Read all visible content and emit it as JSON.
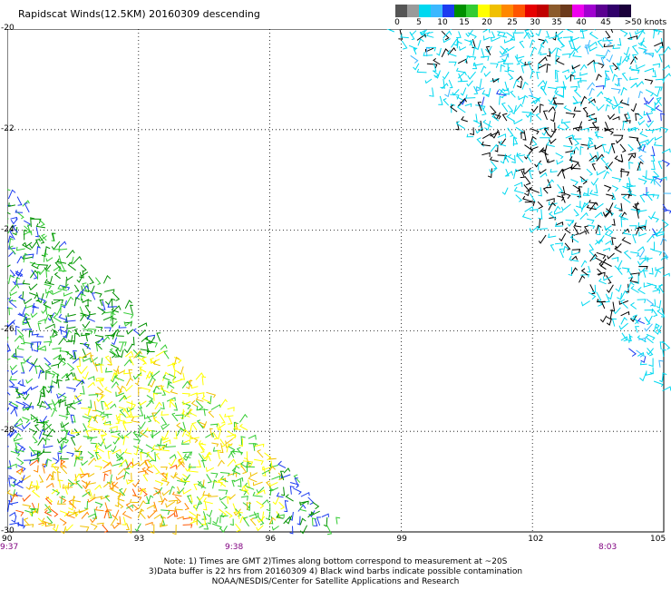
{
  "title": "Rapidscat Winds(12.5KM) 20160309 descending",
  "legend": {
    "colors": [
      "#555555",
      "#9a9a9a",
      "#00d8f0",
      "#3cb8ff",
      "#1c3cf0",
      "#009000",
      "#33cc33",
      "#ffff00",
      "#f0c000",
      "#ff8800",
      "#ff5500",
      "#e60000",
      "#c00000",
      "#8b5a2b",
      "#6b3a1b",
      "#ee00ee",
      "#a000d0",
      "#5a0090",
      "#30006a",
      "#1a003a"
    ],
    "labels": [
      "0",
      "5",
      "10",
      "15",
      "20",
      "25",
      "30",
      "35",
      "40",
      "45",
      ">50 knots"
    ]
  },
  "map": {
    "lat_labels": [
      "-20",
      "-22",
      "-24",
      "-26",
      "-28",
      "-30"
    ],
    "lon_labels": [
      "90",
      "93",
      "96",
      "99",
      "102",
      "105"
    ],
    "time_labels": [
      "9:37",
      "9:38",
      "8:03"
    ],
    "lat_range": [
      -30,
      -20
    ],
    "lon_range": [
      90,
      105
    ],
    "gridlines": true,
    "swaths": [
      {
        "name": "west",
        "hull": [
          [
            90,
            -23.1
          ],
          [
            90,
            -30
          ],
          [
            97.8,
            -30
          ]
        ],
        "speed_knots": [
          5,
          28
        ]
      },
      {
        "name": "east",
        "hull": [
          [
            98.7,
            -20
          ],
          [
            105,
            -20
          ],
          [
            105,
            -27.4
          ]
        ],
        "speed_knots": [
          0,
          18
        ]
      }
    ]
  },
  "notes": [
    "Note: 1) Times are GMT 2)Times along bottom correspond to measurement at ~20S",
    "3)Data buffer is 22 hrs from 20160309 4) Black wind barbs indicate possible contamination",
    "NOAA/NESDIS/Center for Satellite Applications and Research"
  ]
}
